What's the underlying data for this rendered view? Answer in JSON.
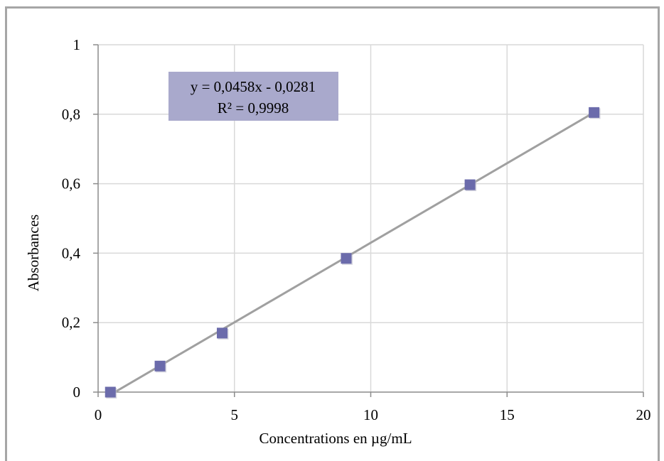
{
  "chart_data": {
    "type": "scatter",
    "xlabel": "Concentrations en µg/mL",
    "ylabel": "Absorbances",
    "xlim": [
      0,
      20
    ],
    "ylim": [
      0,
      1
    ],
    "x_ticks": [
      "0",
      "5",
      "10",
      "15",
      "20"
    ],
    "y_ticks": [
      "0",
      "0,2",
      "0,4",
      "0,6",
      "0,8",
      "1"
    ],
    "grid": true,
    "series": [
      {
        "points": [
          {
            "x": 0.45,
            "y": 0.0
          },
          {
            "x": 2.27,
            "y": 0.075
          },
          {
            "x": 4.55,
            "y": 0.17
          },
          {
            "x": 9.1,
            "y": 0.385
          },
          {
            "x": 13.64,
            "y": 0.597
          },
          {
            "x": 18.19,
            "y": 0.805
          }
        ],
        "marker_color": "#6b6bab",
        "trendline": {
          "type": "linear",
          "slope": 0.0458,
          "intercept": -0.0281,
          "color": "#a0a0a0"
        }
      }
    ],
    "annotation": {
      "equation": "y = 0,0458x - 0,0281",
      "r_squared": "R² = 0,9998",
      "box_color": "#a9a9cc"
    }
  }
}
